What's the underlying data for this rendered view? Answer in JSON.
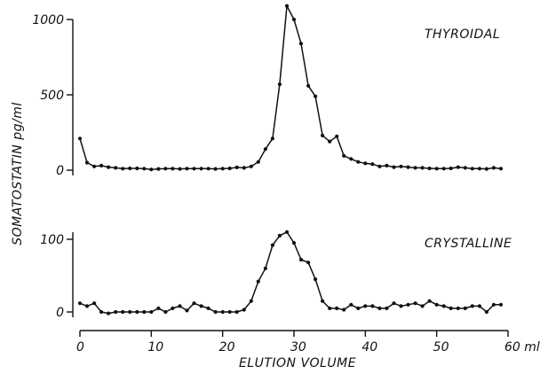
{
  "chart_data": [
    {
      "type": "line",
      "panel_label": "THYROIDAL",
      "ylim": [
        0,
        1000
      ],
      "y_ticks": [
        0,
        500,
        1000
      ],
      "y_tick_labels": [
        "0",
        "500",
        "1000"
      ],
      "grid": false,
      "x": [
        0,
        1,
        2,
        3,
        4,
        5,
        6,
        7,
        8,
        9,
        10,
        11,
        12,
        13,
        14,
        15,
        16,
        17,
        18,
        19,
        20,
        21,
        22,
        23,
        24,
        25,
        26,
        27,
        28,
        29,
        30,
        31,
        32,
        33,
        34,
        35,
        36,
        37,
        38,
        39,
        40,
        41,
        42,
        43,
        44,
        45,
        46,
        47,
        48,
        49,
        50,
        51,
        52,
        53,
        54,
        55,
        56,
        57,
        58,
        59
      ],
      "y": [
        210,
        50,
        25,
        30,
        20,
        15,
        10,
        12,
        12,
        10,
        5,
        8,
        10,
        10,
        8,
        10,
        10,
        10,
        10,
        8,
        10,
        12,
        18,
        15,
        25,
        55,
        140,
        210,
        570,
        1090,
        1000,
        840,
        560,
        490,
        230,
        190,
        225,
        95,
        75,
        55,
        45,
        40,
        25,
        30,
        20,
        25,
        20,
        15,
        15,
        12,
        10,
        10,
        12,
        20,
        15,
        10,
        10,
        8,
        15,
        10
      ]
    },
    {
      "type": "line",
      "panel_label": "CRYSTALLINE",
      "ylim": [
        0,
        100
      ],
      "y_ticks": [
        0,
        100
      ],
      "y_tick_labels": [
        "0",
        "100"
      ],
      "grid": false,
      "x": [
        0,
        1,
        2,
        3,
        4,
        5,
        6,
        7,
        8,
        9,
        10,
        11,
        12,
        13,
        14,
        15,
        16,
        17,
        18,
        19,
        20,
        21,
        22,
        23,
        24,
        25,
        26,
        27,
        28,
        29,
        30,
        31,
        32,
        33,
        34,
        35,
        36,
        37,
        38,
        39,
        40,
        41,
        42,
        43,
        44,
        45,
        46,
        47,
        48,
        49,
        50,
        51,
        52,
        53,
        54,
        55,
        56,
        57,
        58,
        59
      ],
      "y": [
        12,
        8,
        12,
        0,
        -2,
        0,
        0,
        0,
        0,
        0,
        0,
        5,
        0,
        5,
        8,
        2,
        12,
        8,
        5,
        0,
        0,
        0,
        0,
        3,
        15,
        42,
        60,
        92,
        105,
        110,
        95,
        72,
        68,
        45,
        15,
        5,
        5,
        3,
        10,
        5,
        8,
        8,
        5,
        5,
        12,
        8,
        10,
        12,
        8,
        15,
        10,
        8,
        5,
        5,
        5,
        8,
        8,
        0,
        10,
        10
      ]
    }
  ],
  "x_axis": {
    "label": "ELUTION VOLUME",
    "ticks": [
      0,
      10,
      20,
      30,
      40,
      50,
      60
    ],
    "tick_labels": [
      "0",
      "10",
      "20",
      "30",
      "40",
      "50",
      "60 ml"
    ],
    "xlim": [
      0,
      60
    ]
  },
  "y_axis_label": "SOMATOSTATIN pg/ml"
}
